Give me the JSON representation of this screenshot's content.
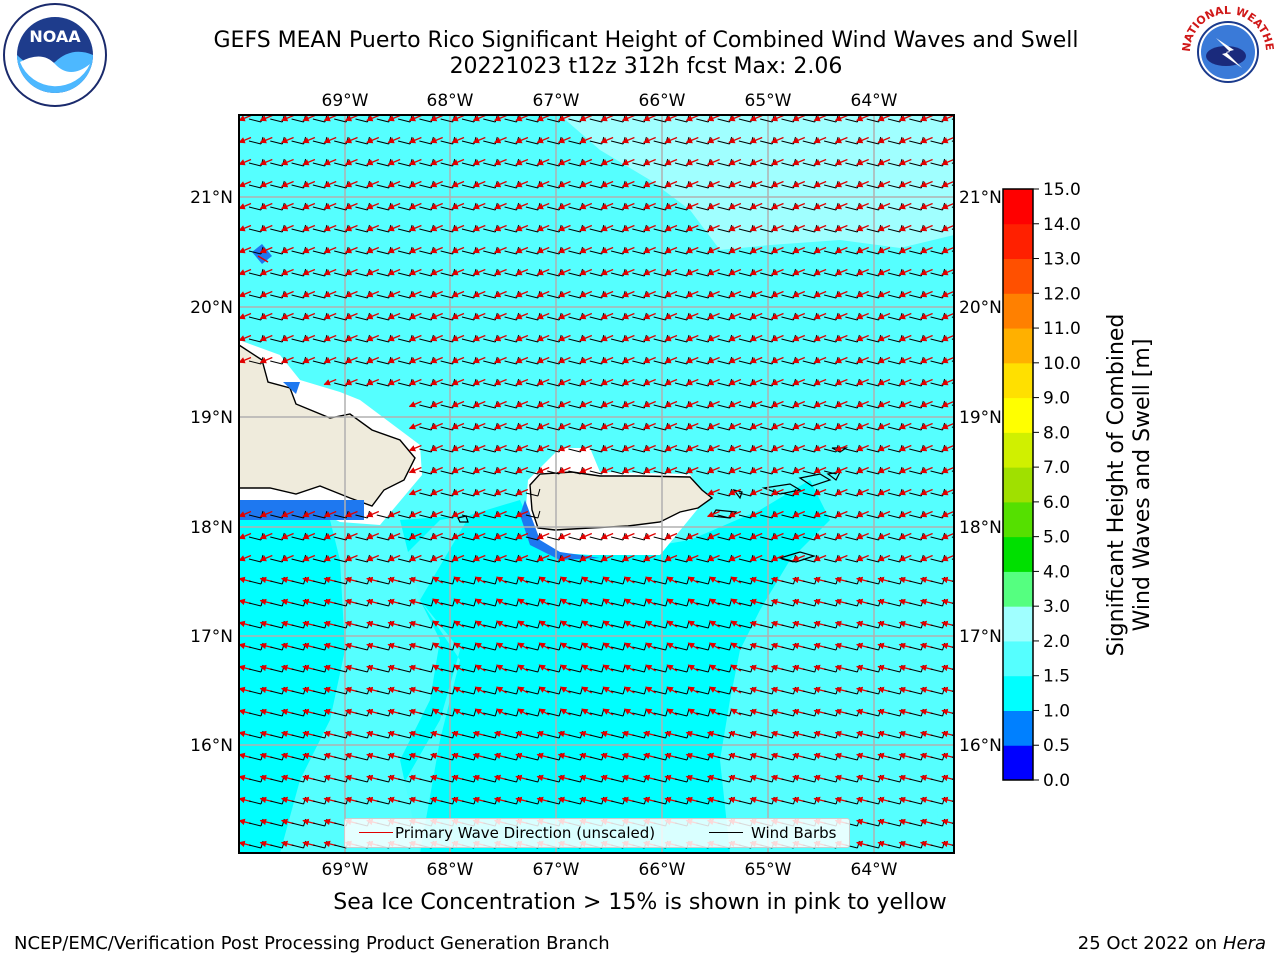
{
  "title_line1": "GEFS MEAN Puerto Rico Significant Height of Combined Wind Waves and Swell",
  "title_line2": "20221023 t12z 312h fcst   Max: 2.06",
  "lon_ticks": [
    "69°W",
    "68°W",
    "67°W",
    "66°W",
    "65°W",
    "64°W"
  ],
  "lat_ticks": [
    "21°N",
    "20°N",
    "19°N",
    "18°N",
    "17°N",
    "16°N"
  ],
  "colorbar": {
    "label_line1": "Significant Height of Combined",
    "label_line2": "Wind Waves and Swell [m]",
    "ticks": [
      "15.0",
      "14.0",
      "13.0",
      "12.0",
      "11.0",
      "10.0",
      "9.0",
      "8.0",
      "7.0",
      "6.0",
      "5.0",
      "4.0",
      "3.0",
      "2.0",
      "1.5",
      "1.0",
      "0.5",
      "0.0"
    ],
    "colors": [
      "#0000ff",
      "#0080ff",
      "#00ffff",
      "#55ffff",
      "#a0ffff",
      "#55ff80",
      "#00e000",
      "#55e000",
      "#a0e000",
      "#d0f000",
      "#ffff00",
      "#ffe000",
      "#ffb000",
      "#ff8000",
      "#ff5000",
      "#ff2000",
      "#ff0000"
    ]
  },
  "legend": {
    "wave_label": "Primary Wave Direction (unscaled)",
    "wind_label": "Wind Barbs",
    "wave_color": "#e00000",
    "wind_color": "#000000"
  },
  "footer_note": "Sea Ice Concentration > 15% is shown in pink to yellow",
  "credit": "NCEP/EMC/Verification Post Processing Product Generation Branch",
  "date_text": "25 Oct 2022 on ",
  "date_host": "Hera",
  "logos": {
    "left": "NOAA",
    "right": "NATIONAL WEATHER SERVICE"
  }
}
